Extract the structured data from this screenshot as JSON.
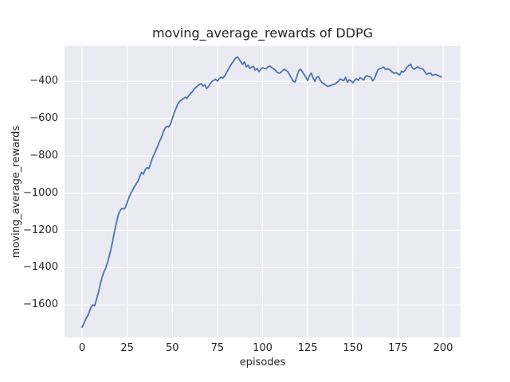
{
  "chart_data": {
    "type": "line",
    "title": "moving_average_rewards of DDPG",
    "xlabel": "episodes",
    "ylabel": "moving_average_rewards",
    "xlim": [
      -9.7,
      209.7
    ],
    "ylim": [
      -1775,
      -210
    ],
    "grid": true,
    "legend": false,
    "style": {
      "plot_bg": "#eaeaf2",
      "grid_color": "#ffffff",
      "text_color": "#262626",
      "line_color": "#4c72b0",
      "figure_bg": "#ffffff"
    },
    "xticks": {
      "values": [
        0,
        25,
        50,
        75,
        100,
        125,
        150,
        175,
        200
      ],
      "labels": [
        "0",
        "25",
        "50",
        "75",
        "100",
        "125",
        "150",
        "175",
        "200"
      ]
    },
    "yticks": {
      "values": [
        -400,
        -600,
        -800,
        -1000,
        -1200,
        -1400,
        -1600
      ],
      "labels": [
        "−400",
        "−600",
        "−800",
        "−1000",
        "−1200",
        "−1400",
        "−1600"
      ]
    },
    "series": [
      {
        "name": "moving_average_rewards",
        "color": "#4c72b0",
        "x_start": 0,
        "x_step": 1,
        "values": [
          -1720,
          -1700,
          -1678,
          -1660,
          -1638,
          -1612,
          -1600,
          -1605,
          -1570,
          -1535,
          -1495,
          -1455,
          -1425,
          -1405,
          -1375,
          -1340,
          -1300,
          -1255,
          -1205,
          -1160,
          -1118,
          -1095,
          -1082,
          -1085,
          -1078,
          -1050,
          -1022,
          -1000,
          -985,
          -965,
          -950,
          -935,
          -910,
          -888,
          -898,
          -873,
          -862,
          -868,
          -838,
          -812,
          -790,
          -768,
          -745,
          -720,
          -700,
          -672,
          -650,
          -640,
          -645,
          -628,
          -600,
          -570,
          -545,
          -522,
          -507,
          -500,
          -492,
          -485,
          -490,
          -478,
          -464,
          -456,
          -442,
          -432,
          -424,
          -416,
          -412,
          -424,
          -418,
          -437,
          -428,
          -412,
          -399,
          -394,
          -388,
          -398,
          -384,
          -377,
          -382,
          -371,
          -352,
          -335,
          -318,
          -302,
          -288,
          -275,
          -268,
          -280,
          -295,
          -308,
          -294,
          -321,
          -312,
          -330,
          -322,
          -320,
          -338,
          -330,
          -347,
          -334,
          -326,
          -330,
          -331,
          -321,
          -317,
          -324,
          -331,
          -338,
          -350,
          -355,
          -353,
          -342,
          -334,
          -340,
          -348,
          -365,
          -382,
          -399,
          -403,
          -373,
          -342,
          -334,
          -347,
          -362,
          -378,
          -394,
          -368,
          -355,
          -381,
          -399,
          -377,
          -373,
          -394,
          -407,
          -412,
          -420,
          -426,
          -424,
          -420,
          -417,
          -414,
          -407,
          -399,
          -386,
          -391,
          -395,
          -378,
          -404,
          -391,
          -397,
          -407,
          -393,
          -385,
          -394,
          -379,
          -385,
          -392,
          -373,
          -369,
          -374,
          -376,
          -397,
          -384,
          -358,
          -336,
          -331,
          -328,
          -322,
          -334,
          -332,
          -333,
          -341,
          -350,
          -356,
          -352,
          -360,
          -364,
          -344,
          -350,
          -339,
          -323,
          -314,
          -308,
          -327,
          -334,
          -327,
          -321,
          -329,
          -331,
          -334,
          -349,
          -361,
          -357,
          -355,
          -367,
          -364,
          -362,
          -367,
          -371,
          -376
        ]
      }
    ]
  }
}
